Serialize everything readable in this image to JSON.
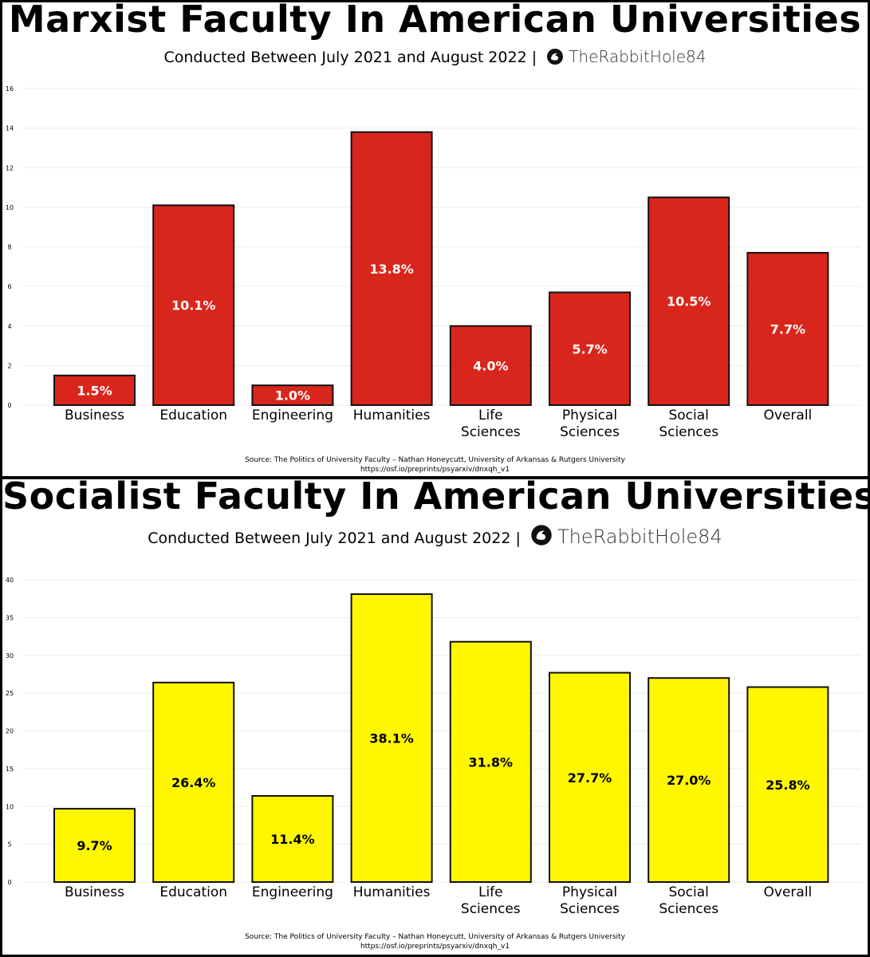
{
  "charts": [
    {
      "title": "Marxist Faculty In American Universities",
      "subtitle": "Conducted Between July 2021 and August 2022 |",
      "brand": "TheRabbitHole84",
      "source_line1": "Source: The Politics of University Faculty – Nathan Honeycutt, University of Arkansas & Rutgers University",
      "source_line2": "https://osf.io/preprints/psyarxiv/dnxqh_v1"
    },
    {
      "title": "Socialist Faculty In American Universities",
      "subtitle": "Conducted Between July 2021 and August 2022 |",
      "brand": "TheRabbitHole84",
      "source_line1": "Source: The Politics of University Faculty – Nathan Honeycutt, University of Arkansas & Rutgers University",
      "source_line2": "https://osf.io/preprints/psyarxiv/dnxqh_v1"
    }
  ],
  "chart_data": [
    {
      "type": "bar",
      "title": "Marxist Faculty In American Universities",
      "subtitle": "Conducted Between July 2021 and August 2022",
      "categories": [
        [
          "Business"
        ],
        [
          "Education"
        ],
        [
          "Engineering"
        ],
        [
          "Humanities"
        ],
        [
          "Life",
          "Sciences"
        ],
        [
          "Physical",
          "Sciences"
        ],
        [
          "Social",
          "Sciences"
        ],
        [
          "Overall"
        ]
      ],
      "values": [
        1.5,
        10.1,
        1.0,
        13.8,
        4.0,
        5.7,
        10.5,
        7.7
      ],
      "data_labels": [
        "1.5%",
        "10.1%",
        "1.0%",
        "13.8%",
        "4.0%",
        "5.7%",
        "10.5%",
        "7.7%"
      ],
      "ylim": [
        0,
        16
      ],
      "yticks": [
        0,
        2,
        4,
        6,
        8,
        10,
        12,
        14,
        16
      ],
      "bar_color": "#d9261c",
      "label_color": "#ffffff",
      "grid": true,
      "xlabel": "",
      "ylabel": ""
    },
    {
      "type": "bar",
      "title": "Socialist Faculty In American Universities",
      "subtitle": "Conducted Between July 2021 and August 2022",
      "categories": [
        [
          "Business"
        ],
        [
          "Education"
        ],
        [
          "Engineering"
        ],
        [
          "Humanities"
        ],
        [
          "Life",
          "Sciences"
        ],
        [
          "Physical",
          "Sciences"
        ],
        [
          "Social",
          "Sciences"
        ],
        [
          "Overall"
        ]
      ],
      "values": [
        9.7,
        26.4,
        11.4,
        38.1,
        31.8,
        27.7,
        27.0,
        25.8
      ],
      "data_labels": [
        "9.7%",
        "26.4%",
        "11.4%",
        "38.1%",
        "31.8%",
        "27.7%",
        "27.0%",
        "25.8%"
      ],
      "ylim": [
        0,
        40
      ],
      "yticks": [
        0,
        5,
        10,
        15,
        20,
        25,
        30,
        35,
        40
      ],
      "bar_color": "#fff700",
      "label_color": "#000000",
      "grid": true,
      "xlabel": "",
      "ylabel": ""
    }
  ]
}
